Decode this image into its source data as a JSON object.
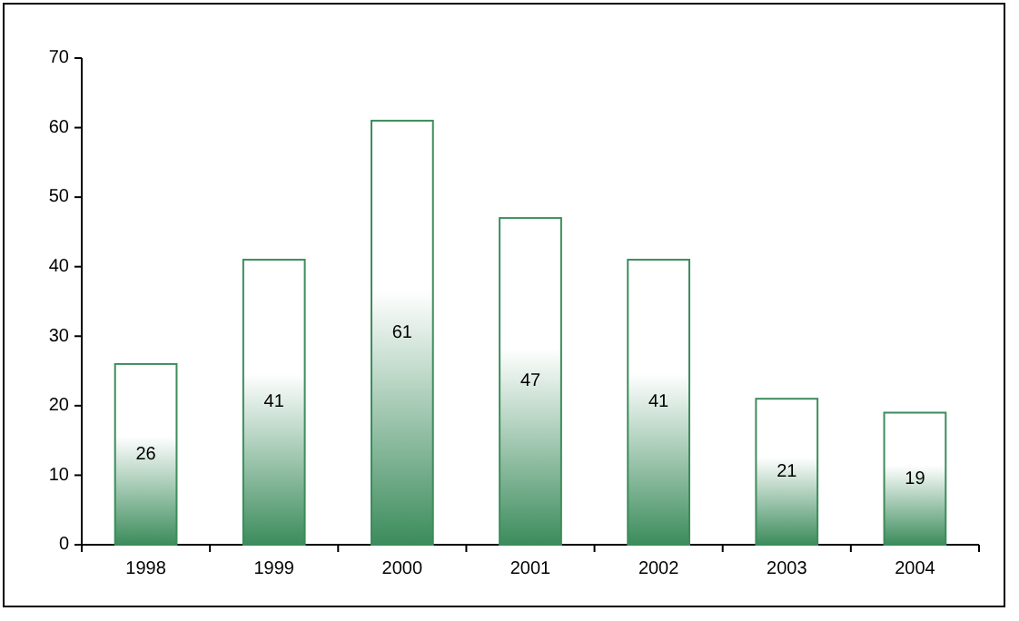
{
  "chart_data": {
    "type": "bar",
    "categories": [
      "1998",
      "1999",
      "2000",
      "2001",
      "2002",
      "2003",
      "2004"
    ],
    "values": [
      26,
      41,
      61,
      47,
      41,
      21,
      19
    ],
    "color": "#3c8c5c",
    "ylim": [
      0,
      70
    ],
    "yticks": [
      0,
      10,
      20,
      30,
      40,
      50,
      60,
      70
    ],
    "data_labels": true,
    "grid": false
  }
}
